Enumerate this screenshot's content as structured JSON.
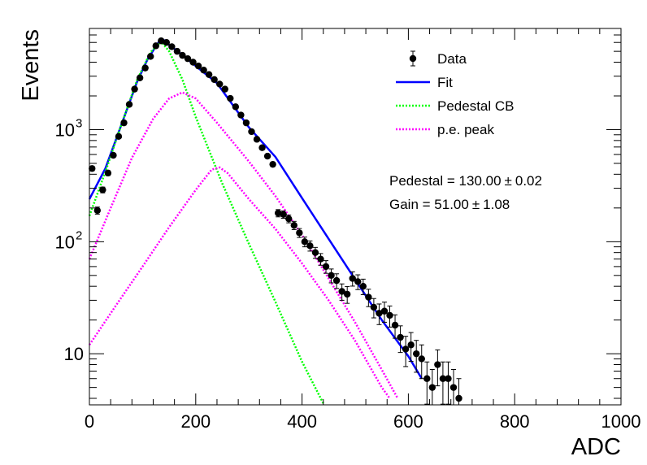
{
  "chart_data": {
    "type": "scatter",
    "title": "",
    "xlabel": "ADC",
    "ylabel": "Events",
    "xlim": [
      0,
      1000
    ],
    "ylim": [
      3.5,
      8000
    ],
    "log_y": true,
    "grid": false,
    "legend_position": "top-right",
    "x_ticks": [
      {
        "value": 0,
        "label": "0"
      },
      {
        "value": 200,
        "label": "200"
      },
      {
        "value": 400,
        "label": "400"
      },
      {
        "value": 600,
        "label": "600"
      },
      {
        "value": 800,
        "label": "800"
      },
      {
        "value": 1000,
        "label": "1000"
      }
    ],
    "y_ticks": [
      {
        "value": 10,
        "label": "10",
        "sup": ""
      },
      {
        "value": 100,
        "label": "10",
        "sup": "2"
      },
      {
        "value": 1000,
        "label": "10",
        "sup": "3"
      }
    ],
    "legend": [
      {
        "name": "Data",
        "style": "marker",
        "color": "#000000"
      },
      {
        "name": "Fit",
        "style": "line",
        "color": "#0000ff"
      },
      {
        "name": "Pedestal CB",
        "style": "dotted",
        "color": "#00ff00"
      },
      {
        "name": "p.e. peak",
        "style": "dotted",
        "color": "#ff00ff"
      }
    ],
    "annotations": [
      {
        "label": "Pedestal = 130.00",
        "pm": "±",
        "err": "0.02"
      },
      {
        "label": "Gain = 51.00",
        "pm": "±",
        "err": "1.08"
      }
    ],
    "series": [
      {
        "name": "Data",
        "kind": "points",
        "color": "#000000",
        "points": [
          [
            5,
            450
          ],
          [
            15,
            190
          ],
          [
            25,
            290
          ],
          [
            35,
            410
          ],
          [
            45,
            590
          ],
          [
            55,
            870
          ],
          [
            65,
            1150
          ],
          [
            75,
            1680
          ],
          [
            85,
            2300
          ],
          [
            95,
            2900
          ],
          [
            105,
            3550
          ],
          [
            115,
            4500
          ],
          [
            125,
            5600
          ],
          [
            135,
            6200
          ],
          [
            145,
            6000
          ],
          [
            155,
            5500
          ],
          [
            165,
            5000
          ],
          [
            175,
            4600
          ],
          [
            185,
            4300
          ],
          [
            195,
            4000
          ],
          [
            205,
            3700
          ],
          [
            215,
            3400
          ],
          [
            225,
            3100
          ],
          [
            235,
            2800
          ],
          [
            245,
            2550
          ],
          [
            255,
            2300
          ],
          [
            265,
            1900
          ],
          [
            275,
            1600
          ],
          [
            285,
            1350
          ],
          [
            295,
            1150
          ],
          [
            305,
            960
          ],
          [
            315,
            820
          ],
          [
            325,
            690
          ],
          [
            335,
            580
          ],
          [
            345,
            490
          ],
          [
            355,
            180
          ],
          [
            365,
            175
          ],
          [
            375,
            160
          ],
          [
            385,
            140
          ],
          [
            395,
            120
          ],
          [
            405,
            100
          ],
          [
            415,
            92
          ],
          [
            425,
            80
          ],
          [
            435,
            70
          ],
          [
            445,
            60
          ],
          [
            455,
            50
          ],
          [
            465,
            45
          ],
          [
            475,
            36
          ],
          [
            485,
            34
          ],
          [
            495,
            47
          ],
          [
            505,
            44
          ],
          [
            515,
            40
          ],
          [
            525,
            32
          ],
          [
            535,
            26
          ],
          [
            545,
            23
          ],
          [
            555,
            24
          ],
          [
            565,
            22
          ],
          [
            575,
            18
          ],
          [
            585,
            14
          ],
          [
            595,
            11
          ],
          [
            605,
            12
          ],
          [
            615,
            10
          ],
          [
            625,
            9
          ],
          [
            635,
            6
          ],
          [
            645,
            5
          ],
          [
            655,
            8
          ],
          [
            665,
            6
          ],
          [
            675,
            6
          ],
          [
            685,
            5
          ],
          [
            695,
            4
          ]
        ]
      },
      {
        "name": "Fit",
        "kind": "line",
        "color": "#0000ff",
        "points": [
          [
            0,
            240
          ],
          [
            30,
            450
          ],
          [
            60,
            1100
          ],
          [
            90,
            2700
          ],
          [
            110,
            4300
          ],
          [
            130,
            6000
          ],
          [
            140,
            6300
          ],
          [
            150,
            5700
          ],
          [
            175,
            4650
          ],
          [
            200,
            3700
          ],
          [
            240,
            2600
          ],
          [
            270,
            1650
          ],
          [
            300,
            1050
          ],
          [
            350,
            570
          ],
          [
            400,
            245
          ],
          [
            450,
            106
          ],
          [
            500,
            46
          ],
          [
            550,
            20
          ],
          [
            600,
            9.5
          ],
          [
            625,
            6
          ]
        ]
      },
      {
        "name": "Pedestal CB",
        "kind": "dotted",
        "color": "#00ff00",
        "points": [
          [
            0,
            170
          ],
          [
            30,
            420
          ],
          [
            60,
            1100
          ],
          [
            90,
            2800
          ],
          [
            115,
            4900
          ],
          [
            135,
            6100
          ],
          [
            150,
            5000
          ],
          [
            175,
            2800
          ],
          [
            200,
            1300
          ],
          [
            250,
            330
          ],
          [
            300,
            96
          ],
          [
            350,
            29
          ],
          [
            400,
            8.5
          ],
          [
            440,
            3.6
          ]
        ]
      },
      {
        "name": "p.e. peak",
        "kind": "dotted",
        "color": "#ff00ff",
        "points": [
          [
            0,
            70
          ],
          [
            40,
            200
          ],
          [
            80,
            560
          ],
          [
            120,
            1250
          ],
          [
            150,
            1900
          ],
          [
            175,
            2150
          ],
          [
            200,
            1900
          ],
          [
            240,
            1150
          ],
          [
            300,
            520
          ],
          [
            350,
            255
          ],
          [
            400,
            115
          ],
          [
            450,
            47
          ],
          [
            500,
            19
          ],
          [
            550,
            7.2
          ],
          [
            580,
            4
          ]
        ]
      },
      {
        "name": "p.e. peak",
        "kind": "dotted",
        "color": "#ff00ff",
        "points": [
          [
            0,
            12
          ],
          [
            50,
            27
          ],
          [
            100,
            60
          ],
          [
            150,
            135
          ],
          [
            200,
            290
          ],
          [
            230,
            440
          ],
          [
            245,
            460
          ],
          [
            260,
            410
          ],
          [
            300,
            240
          ],
          [
            350,
            130
          ],
          [
            400,
            64
          ],
          [
            450,
            30
          ],
          [
            500,
            13
          ],
          [
            550,
            5
          ],
          [
            565,
            4
          ]
        ]
      }
    ]
  }
}
